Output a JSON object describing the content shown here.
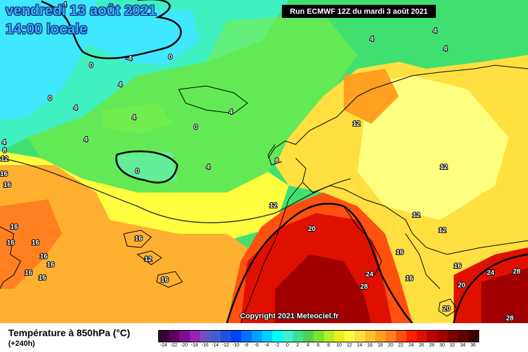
{
  "map": {
    "title_date": "vendredi 13 août 2021",
    "title_time": "14:00 locale",
    "run_info": "Run ECMWF 12Z du mardi 3 août 2021",
    "copyright": "Copyright 2021 Meteociel.fr",
    "isotherm_labels": [
      "-4",
      "0",
      "4",
      "8",
      "12",
      "16",
      "20",
      "24",
      "28"
    ]
  },
  "legend": {
    "title": "Température à 850hPa (°C)",
    "subtitle": "(+240h)",
    "unit": "°C",
    "ticks": [
      "-24",
      "-22",
      "-20",
      "-18",
      "-16",
      "-14",
      "-12",
      "-10",
      "-8",
      "-6",
      "-4",
      "-2",
      "0",
      "2",
      "4",
      "6",
      "8",
      "10",
      "12",
      "14",
      "16",
      "18",
      "20",
      "22",
      "24",
      "26",
      "28",
      "30",
      "32",
      "34",
      "36"
    ],
    "colors": [
      "#3a0030",
      "#5a0060",
      "#7a1090",
      "#9a20b0",
      "#7050c0",
      "#4060d0",
      "#2050e0",
      "#0040ff",
      "#0070ff",
      "#00a0ff",
      "#00d0ff",
      "#00ffff",
      "#40f0d0",
      "#40e090",
      "#50d050",
      "#80e030",
      "#b0f020",
      "#e8f020",
      "#ffff40",
      "#ffe040",
      "#ffc030",
      "#ffa020",
      "#ff8020",
      "#ff5010",
      "#ff2000",
      "#e01000",
      "#c00000",
      "#a00000",
      "#800000",
      "#600000",
      "#400000"
    ]
  },
  "palette": {
    "cyan": "#40e8ff",
    "aqua": "#40f0c0",
    "green": "#40e070",
    "lime": "#80f040",
    "yellow": "#ffff40",
    "pale_yellow": "#ffff80",
    "orange": "#ffb030",
    "dark_orange": "#ff8020",
    "red": "#ff3000",
    "dark_red": "#c00000",
    "coast": "#000000"
  }
}
